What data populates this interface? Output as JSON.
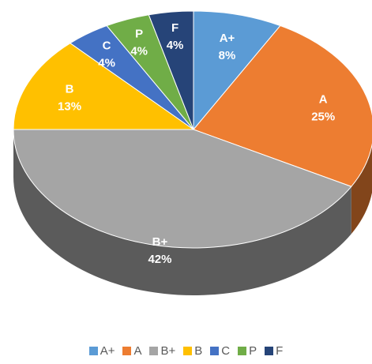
{
  "chart_data": {
    "type": "pie",
    "categories": [
      "A+",
      "A",
      "B+",
      "B",
      "C",
      "P",
      "F"
    ],
    "values": [
      8,
      25,
      42,
      13,
      4,
      4,
      4
    ],
    "value_labels": [
      "8%",
      "25%",
      "42%",
      "13%",
      "4%",
      "4%",
      "4%"
    ],
    "colors": [
      "#5b9bd5",
      "#ed7d31",
      "#a5a5a5",
      "#ffc000",
      "#4472c4",
      "#70ad47",
      "#264478"
    ],
    "legend": "bottom"
  }
}
